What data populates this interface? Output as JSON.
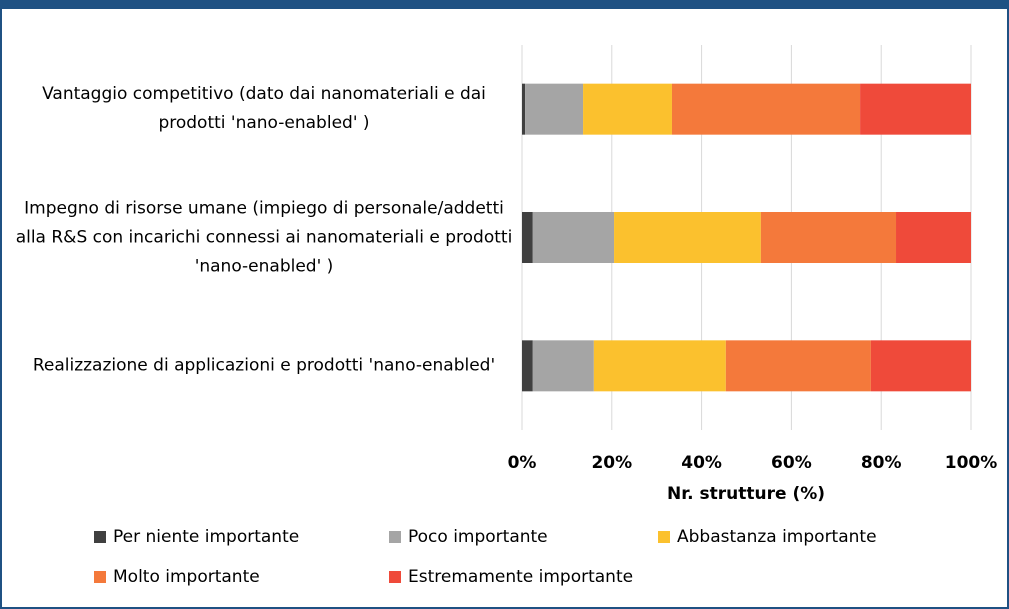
{
  "chart_data": {
    "type": "stacked_barh",
    "categories": [
      "Vantaggio competitivo (dato dai nanomateriali e dai prodotti  'nano-enabled' )",
      "Impegno di risorse umane (impiego di personale/addetti alla R&S con incarichi connessi ai nanomateriali e prodotti  'nano-enabled' )",
      "Realizzazione di applicazioni e prodotti 'nano-enabled'"
    ],
    "series": [
      {
        "name": "Per niente importante",
        "color": "#404040",
        "values": [
          0.7,
          2.4,
          2.4
        ]
      },
      {
        "name": "Poco importante",
        "color": "#a5a5a5",
        "values": [
          12.9,
          18.1,
          13.6
        ]
      },
      {
        "name": "Abbastanza importante",
        "color": "#fbc12e",
        "values": [
          19.8,
          32.7,
          29.4
        ]
      },
      {
        "name": "Molto importante",
        "color": "#f4793b",
        "values": [
          41.9,
          30.1,
          32.3
        ]
      },
      {
        "name": "Estremamente importante",
        "color": "#ef4a3a",
        "values": [
          24.7,
          16.7,
          22.3
        ]
      }
    ],
    "xlabel": "Nr. strutture (%)",
    "xlim": [
      0,
      100
    ],
    "xticks": [
      {
        "value": 0,
        "label": "0%"
      },
      {
        "value": 20,
        "label": "20%"
      },
      {
        "value": 40,
        "label": "40%"
      },
      {
        "value": 60,
        "label": "60%"
      },
      {
        "value": 80,
        "label": "80%"
      },
      {
        "value": 100,
        "label": "100%"
      }
    ],
    "grid": true,
    "legend": "bottom"
  }
}
